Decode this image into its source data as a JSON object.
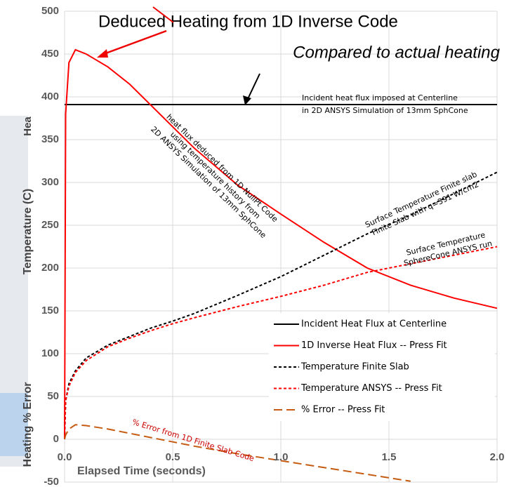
{
  "chart_data": {
    "type": "line",
    "title": "Deduced Heating from 1D Inverse Code",
    "subtitle": "Compared to actual heating",
    "x_label": "Elapsed Time (seconds)",
    "y_label": "Temperature (C)",
    "y_label_2": "Heating % Error",
    "cropped_text": "Hea",
    "annotations": [
      "Incident heat flux imposed at Centerline",
      "in 2D ANSYS Simulation of 13mm SphCone",
      "heat flux deduced from 1D NullPt Code",
      "using temperature history from",
      "2D ANSYS Simulation of 13mm SphCone",
      "Surface Temperature Finite slab",
      "Finite Slab with q=391 W/cm2",
      "Surface Temperature",
      "SphereCone ANSYS run",
      "% Error from 1D Finite Slab Code"
    ],
    "x": [
      0,
      0.005,
      0.02,
      0.05,
      0.1,
      0.2,
      0.3,
      0.4,
      0.5,
      0.6,
      0.8,
      1.0,
      1.2,
      1.4,
      1.6,
      1.8,
      2.0
    ],
    "series": [
      {
        "name": "Incident Heat Flux at Centerline",
        "color": "#000000",
        "dash": "solid",
        "values": [
          391,
          391,
          391,
          391,
          391,
          391,
          391,
          391,
          391,
          391,
          391,
          391,
          391,
          391,
          391,
          391,
          391
        ]
      },
      {
        "name": "1D Inverse Heat Flux -- Press Fit",
        "color": "#ff0000",
        "dash": "solid",
        "values": [
          0,
          380,
          440,
          455,
          450,
          435,
          415,
          390,
          365,
          340,
          297,
          263,
          230,
          200,
          180,
          165,
          153
        ]
      },
      {
        "name": "Temperature Finite Slab",
        "color": "#000000",
        "dash": "short",
        "values": [
          0,
          45,
          65,
          80,
          95,
          110,
          120,
          130,
          138,
          147,
          168,
          190,
          215,
          240,
          262,
          287,
          312
        ]
      },
      {
        "name": "Temperature ANSYS  -- Press Fit",
        "color": "#ff0000",
        "dash": "short",
        "values": [
          0,
          45,
          62,
          78,
          92,
          108,
          118,
          127,
          135,
          142,
          155,
          167,
          180,
          195,
          205,
          215,
          225
        ]
      },
      {
        "name": "% Error -- Press Fit",
        "color": "#c55a11",
        "dash": "long",
        "values": [
          0,
          5,
          12,
          17,
          16,
          12,
          7,
          2,
          -3,
          -8,
          -17,
          -25,
          -33,
          -41,
          -49,
          null,
          null
        ]
      }
    ],
    "xlim": [
      0,
      2
    ],
    "xticks": [
      {
        "value": 0,
        "label": "0.0"
      },
      0.5,
      {
        "value": 1,
        "label": "1.0"
      },
      1.5,
      {
        "value": 2,
        "label": "2.0"
      }
    ],
    "ylim": [
      -50,
      500
    ],
    "yticks": [
      -50,
      0,
      50,
      100,
      150,
      200,
      250,
      300,
      350,
      400,
      450,
      500
    ],
    "grid": true
  }
}
